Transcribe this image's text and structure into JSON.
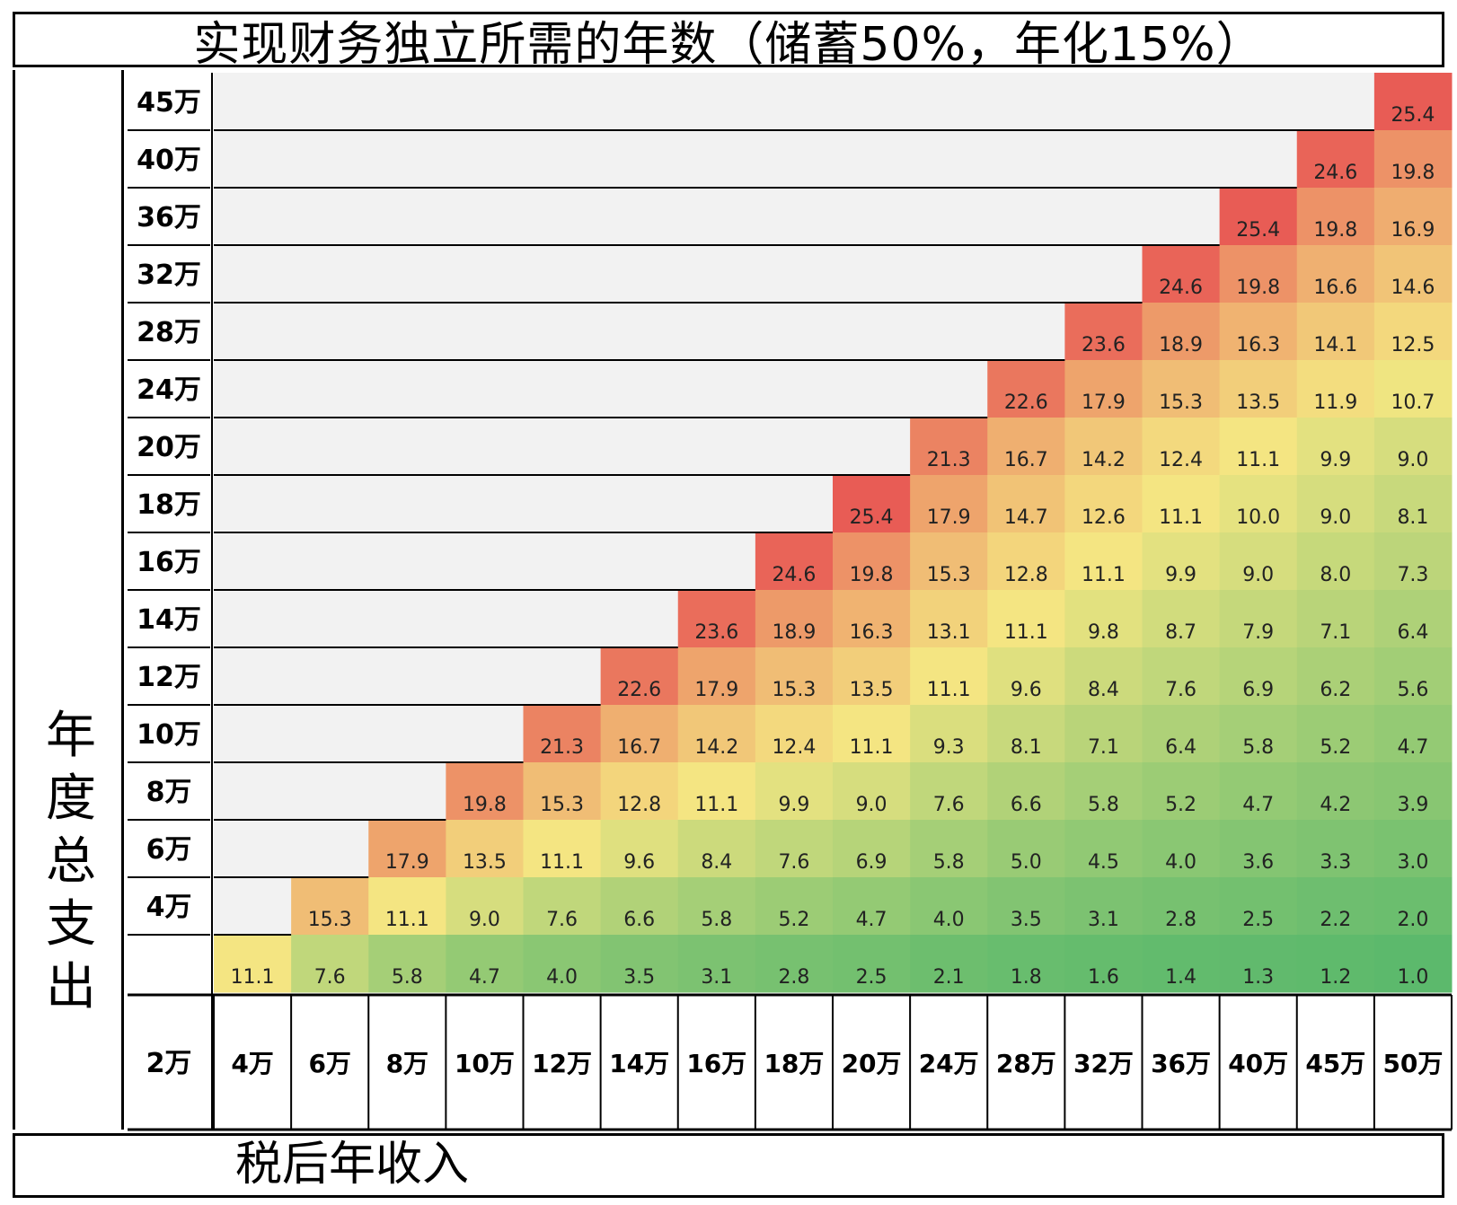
{
  "chart_data": {
    "type": "heatmap",
    "title": "实现财务独立所需的年数（储蓄50%，年化15%）",
    "xlabel": "税后年收入",
    "ylabel": "年度总支出",
    "corner_label": "2万",
    "x_categories": [
      "4万",
      "6万",
      "8万",
      "10万",
      "12万",
      "14万",
      "16万",
      "18万",
      "20万",
      "24万",
      "28万",
      "32万",
      "36万",
      "40万",
      "45万",
      "50万"
    ],
    "y_categories": [
      "45万",
      "40万",
      "36万",
      "32万",
      "28万",
      "24万",
      "20万",
      "18万",
      "16万",
      "14万",
      "12万",
      "10万",
      "8万",
      "6万",
      "4万"
    ],
    "rows": [
      [
        null,
        null,
        null,
        null,
        null,
        null,
        null,
        null,
        null,
        null,
        null,
        null,
        null,
        null,
        null,
        "25.4"
      ],
      [
        null,
        null,
        null,
        null,
        null,
        null,
        null,
        null,
        null,
        null,
        null,
        null,
        null,
        null,
        "24.6",
        "19.8"
      ],
      [
        null,
        null,
        null,
        null,
        null,
        null,
        null,
        null,
        null,
        null,
        null,
        null,
        null,
        "25.4",
        "19.8",
        "16.9"
      ],
      [
        null,
        null,
        null,
        null,
        null,
        null,
        null,
        null,
        null,
        null,
        null,
        null,
        "24.6",
        "19.8",
        "16.6",
        "14.6"
      ],
      [
        null,
        null,
        null,
        null,
        null,
        null,
        null,
        null,
        null,
        null,
        null,
        "23.6",
        "18.9",
        "16.3",
        "14.1",
        "12.5"
      ],
      [
        null,
        null,
        null,
        null,
        null,
        null,
        null,
        null,
        null,
        null,
        "22.6",
        "17.9",
        "15.3",
        "13.5",
        "11.9",
        "10.7"
      ],
      [
        null,
        null,
        null,
        null,
        null,
        null,
        null,
        null,
        null,
        "21.3",
        "16.7",
        "14.2",
        "12.4",
        "11.1",
        "9.9",
        "9.0"
      ],
      [
        null,
        null,
        null,
        null,
        null,
        null,
        null,
        null,
        "25.4",
        "17.9",
        "14.7",
        "12.6",
        "11.1",
        "10.0",
        "9.0",
        "8.1"
      ],
      [
        null,
        null,
        null,
        null,
        null,
        null,
        null,
        "24.6",
        "19.8",
        "15.3",
        "12.8",
        "11.1",
        "9.9",
        "9.0",
        "8.0",
        "7.3"
      ],
      [
        null,
        null,
        null,
        null,
        null,
        null,
        "23.6",
        "18.9",
        "16.3",
        "13.1",
        "11.1",
        "9.8",
        "8.7",
        "7.9",
        "7.1",
        "6.4"
      ],
      [
        null,
        null,
        null,
        null,
        null,
        "22.6",
        "17.9",
        "15.3",
        "13.5",
        "11.1",
        "9.6",
        "8.4",
        "7.6",
        "6.9",
        "6.2",
        "5.6"
      ],
      [
        null,
        null,
        null,
        null,
        "21.3",
        "16.7",
        "14.2",
        "12.4",
        "11.1",
        "9.3",
        "8.1",
        "7.1",
        "6.4",
        "5.8",
        "5.2",
        "4.7"
      ],
      [
        null,
        null,
        null,
        "19.8",
        "15.3",
        "12.8",
        "11.1",
        "9.9",
        "9.0",
        "7.6",
        "6.6",
        "5.8",
        "5.2",
        "4.7",
        "4.2",
        "3.9"
      ],
      [
        null,
        null,
        "17.9",
        "13.5",
        "11.1",
        "9.6",
        "8.4",
        "7.6",
        "6.9",
        "5.8",
        "5.0",
        "4.5",
        "4.0",
        "3.6",
        "3.3",
        "3.0"
      ],
      [
        null,
        "15.3",
        "11.1",
        "9.0",
        "7.6",
        "6.6",
        "5.8",
        "5.2",
        "4.7",
        "4.0",
        "3.5",
        "3.1",
        "2.8",
        "2.5",
        "2.2",
        "2.0"
      ],
      [
        "11.1",
        "7.6",
        "5.8",
        "4.7",
        "4.0",
        "3.5",
        "3.1",
        "2.8",
        "2.5",
        "2.1",
        "1.8",
        "1.6",
        "1.4",
        "1.3",
        "1.2",
        "1.0"
      ]
    ],
    "color_scale": {
      "low": "#5cb96c",
      "mid": "#f4e682",
      "high": "#e85c55",
      "empty": "#f2f2f2"
    }
  }
}
